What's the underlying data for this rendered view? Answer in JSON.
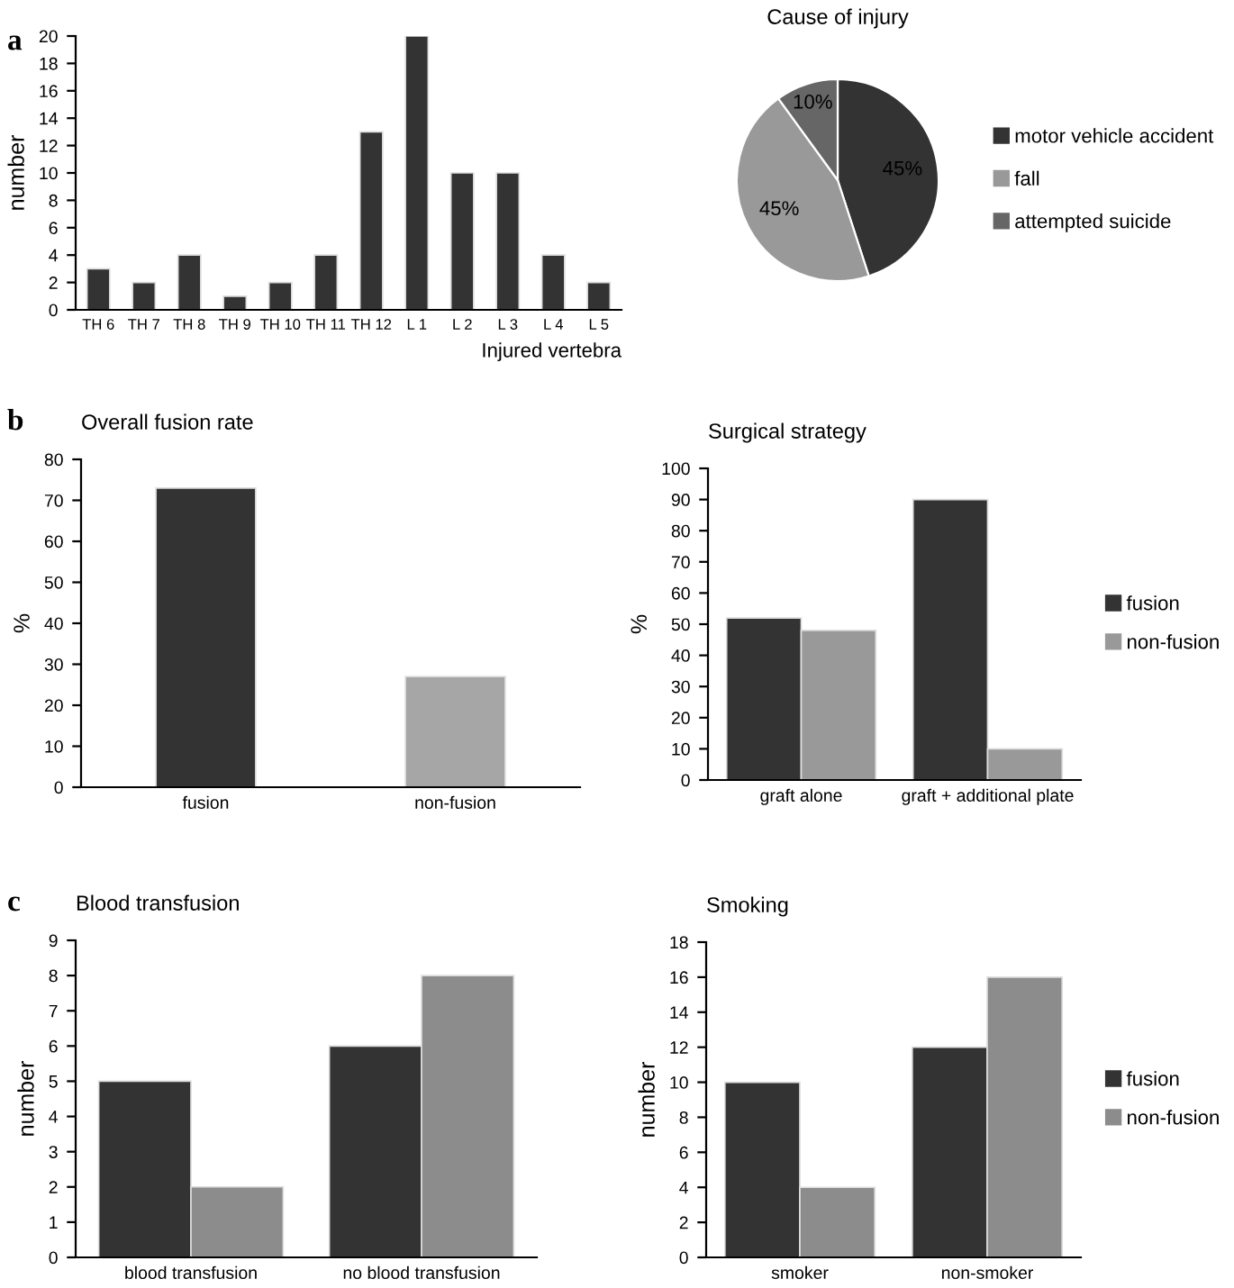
{
  "chart_data": [
    {
      "type": "bar",
      "xlabel": "Injured vertebra",
      "ylabel": "number",
      "annotations": [
        "a"
      ],
      "categories": [
        "TH 6",
        "TH 7",
        "TH 8",
        "TH 9",
        "TH 10",
        "TH 11",
        "TH 12",
        "L 1",
        "L 2",
        "L 3",
        "L 4",
        "L 5"
      ],
      "values": [
        3,
        2,
        4,
        1,
        2,
        4,
        13,
        20,
        10,
        10,
        4,
        2
      ],
      "color": "#333333",
      "ylim": [
        0,
        20
      ],
      "yticks": [
        0,
        2,
        4,
        6,
        8,
        10,
        12,
        14,
        16,
        18,
        20
      ],
      "grid": false,
      "legend": false
    },
    {
      "type": "pie",
      "title": "Cause of injury",
      "categories": [
        "motor vehicle accident",
        "fall",
        "attempted suicide"
      ],
      "values": [
        45,
        45,
        10
      ],
      "colors": [
        "#333333",
        "#999999",
        "#666666"
      ],
      "value_labels": [
        "45%",
        "45%",
        "10%"
      ],
      "legend": "right"
    },
    {
      "type": "bar",
      "title": "Overall fusion rate",
      "ylabel": "%",
      "annotations": [
        "b"
      ],
      "categories": [
        "fusion",
        "non-fusion"
      ],
      "values": [
        73,
        27
      ],
      "colors": [
        "#333333",
        "#a6a6a6"
      ],
      "ylim": [
        0,
        80
      ],
      "yticks": [
        0,
        10,
        20,
        30,
        40,
        50,
        60,
        70,
        80
      ],
      "grid": false,
      "legend": false
    },
    {
      "type": "bar",
      "title": "Surgical strategy",
      "ylabel": "%",
      "categories": [
        "graft alone",
        "graft + additional plate"
      ],
      "series": [
        {
          "name": "fusion",
          "color": "#333333",
          "values": [
            52,
            90
          ]
        },
        {
          "name": "non-fusion",
          "color": "#999999",
          "values": [
            48,
            10
          ]
        }
      ],
      "ylim": [
        0,
        100
      ],
      "yticks": [
        0,
        10,
        20,
        30,
        40,
        50,
        60,
        70,
        80,
        90,
        100
      ],
      "grid": false,
      "legend": "right"
    },
    {
      "type": "bar",
      "title": "Blood transfusion",
      "ylabel": "number",
      "annotations": [
        "c"
      ],
      "categories": [
        "blood transfusion",
        "no blood transfusion"
      ],
      "series": [
        {
          "color": "#333333",
          "values": [
            5,
            6
          ]
        },
        {
          "color": "#8c8c8c",
          "values": [
            2,
            8
          ]
        }
      ],
      "ylim": [
        0,
        9
      ],
      "yticks": [
        0,
        1,
        2,
        3,
        4,
        5,
        6,
        7,
        8,
        9
      ],
      "grid": false,
      "legend": false
    },
    {
      "type": "bar",
      "title": "Smoking",
      "ylabel": "number",
      "categories": [
        "smoker",
        "non-smoker"
      ],
      "series": [
        {
          "name": "fusion",
          "color": "#333333",
          "values": [
            10,
            12
          ]
        },
        {
          "name": "non-fusion",
          "color": "#8c8c8c",
          "values": [
            4,
            16
          ]
        }
      ],
      "ylim": [
        0,
        18
      ],
      "yticks": [
        0,
        2,
        4,
        6,
        8,
        10,
        12,
        14,
        16,
        18
      ],
      "grid": false,
      "legend": "right"
    }
  ]
}
